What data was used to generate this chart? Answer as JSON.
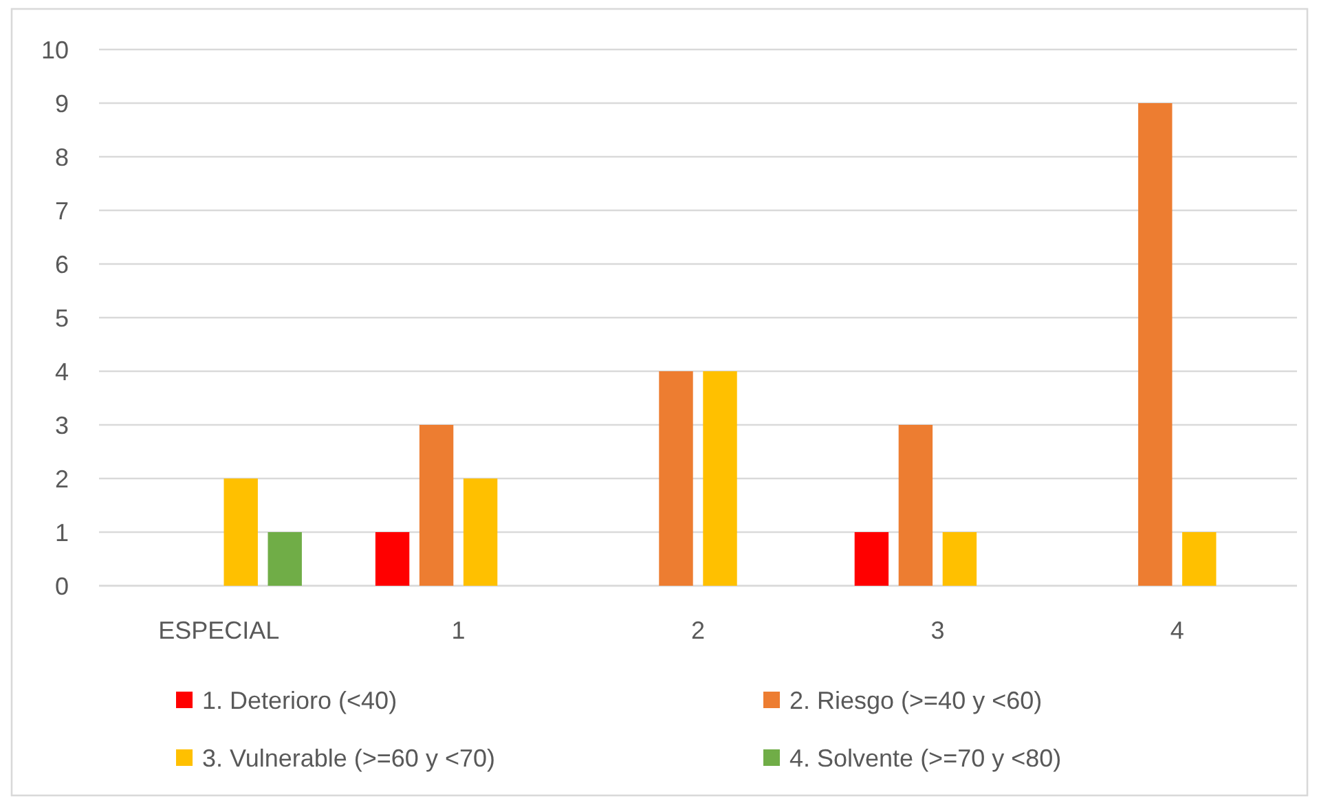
{
  "chart_data": {
    "type": "bar",
    "categories": [
      "ESPECIAL",
      "1",
      "2",
      "3",
      "4"
    ],
    "series": [
      {
        "name": "1. Deterioro (<40)",
        "color": "#ff0000",
        "values": [
          null,
          1,
          null,
          1,
          null
        ]
      },
      {
        "name": "2. Riesgo (>=40 y <60)",
        "color": "#ed7d31",
        "values": [
          null,
          3,
          4,
          3,
          9
        ]
      },
      {
        "name": "3. Vulnerable (>=60 y <70)",
        "color": "#ffc000",
        "values": [
          2,
          2,
          4,
          1,
          1
        ]
      },
      {
        "name": "4. Solvente (>=70 y <80)",
        "color": "#70ad47",
        "values": [
          1,
          null,
          null,
          null,
          null
        ]
      }
    ],
    "ylim": [
      0,
      10
    ],
    "yticks": [
      0,
      1,
      2,
      3,
      4,
      5,
      6,
      7,
      8,
      9,
      10
    ],
    "grid": "y",
    "legend": "bottom"
  }
}
